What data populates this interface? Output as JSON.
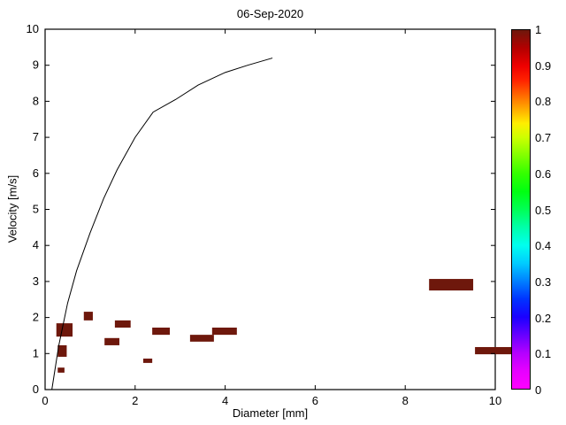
{
  "chart_data": {
    "type": "scatter",
    "title": "06-Sep-2020",
    "xlabel": "Diameter [mm]",
    "ylabel": "Velocity [m/s]",
    "xlim": [
      0,
      10
    ],
    "ylim": [
      0,
      10
    ],
    "xticks": [
      0,
      2,
      4,
      6,
      8,
      10
    ],
    "yticks": [
      0,
      1,
      2,
      3,
      4,
      5,
      6,
      7,
      8,
      9,
      10
    ],
    "grid": false,
    "curve": {
      "name": "terminal-velocity-curve",
      "color": "#000000",
      "points": [
        [
          0.15,
          0.0
        ],
        [
          0.3,
          1.2
        ],
        [
          0.5,
          2.4
        ],
        [
          0.7,
          3.3
        ],
        [
          1.0,
          4.35
        ],
        [
          1.3,
          5.3
        ],
        [
          1.6,
          6.1
        ],
        [
          2.0,
          7.0
        ],
        [
          2.4,
          7.7
        ],
        [
          2.9,
          8.05
        ],
        [
          3.4,
          8.45
        ],
        [
          4.0,
          8.8
        ],
        [
          4.5,
          9.0
        ],
        [
          5.05,
          9.2
        ]
      ]
    },
    "bins": {
      "name": "drop-count-bins",
      "value": 1,
      "color": "#6e180c",
      "rects": [
        {
          "x": 0.28,
          "y": 0.47,
          "w": 0.15,
          "h": 0.14
        },
        {
          "x": 0.28,
          "y": 0.91,
          "w": 0.2,
          "h": 0.32
        },
        {
          "x": 0.25,
          "y": 1.47,
          "w": 0.36,
          "h": 0.37
        },
        {
          "x": 0.86,
          "y": 1.92,
          "w": 0.2,
          "h": 0.24
        },
        {
          "x": 1.32,
          "y": 1.23,
          "w": 0.33,
          "h": 0.2
        },
        {
          "x": 1.55,
          "y": 1.72,
          "w": 0.35,
          "h": 0.2
        },
        {
          "x": 2.18,
          "y": 0.74,
          "w": 0.2,
          "h": 0.12
        },
        {
          "x": 2.38,
          "y": 1.52,
          "w": 0.39,
          "h": 0.2
        },
        {
          "x": 3.22,
          "y": 1.33,
          "w": 0.53,
          "h": 0.19
        },
        {
          "x": 3.71,
          "y": 1.52,
          "w": 0.55,
          "h": 0.2
        },
        {
          "x": 8.53,
          "y": 2.75,
          "w": 0.98,
          "h": 0.32
        },
        {
          "x": 9.55,
          "y": 0.98,
          "w": 1.0,
          "h": 0.2
        }
      ]
    },
    "colorbar": {
      "range": [
        0,
        1
      ],
      "ticks": [
        0,
        0.1,
        0.2,
        0.3,
        0.4,
        0.5,
        0.6,
        0.7,
        0.8,
        0.9,
        1
      ],
      "tick_labels": [
        "0",
        "0.1",
        "0.2",
        "0.3",
        "0.4",
        "0.5",
        "0.6",
        "0.7",
        "0.8",
        "0.9",
        "1"
      ],
      "gradient": [
        [
          0.0,
          "#ff00ff"
        ],
        [
          0.05,
          "#e600ff"
        ],
        [
          0.1,
          "#b300ff"
        ],
        [
          0.15,
          "#6600ff"
        ],
        [
          0.2,
          "#1a00ff"
        ],
        [
          0.25,
          "#0033ff"
        ],
        [
          0.3,
          "#0080ff"
        ],
        [
          0.35,
          "#00ccff"
        ],
        [
          0.4,
          "#00ffee"
        ],
        [
          0.45,
          "#00ffaa"
        ],
        [
          0.5,
          "#00ff55"
        ],
        [
          0.55,
          "#00ff11"
        ],
        [
          0.6,
          "#33ff00"
        ],
        [
          0.65,
          "#80ff00"
        ],
        [
          0.7,
          "#ccff00"
        ],
        [
          0.74,
          "#ffee00"
        ],
        [
          0.78,
          "#ffaa00"
        ],
        [
          0.82,
          "#ff6600"
        ],
        [
          0.86,
          "#ff2200"
        ],
        [
          0.9,
          "#ee0000"
        ],
        [
          0.95,
          "#b30000"
        ],
        [
          1.0,
          "#6e180c"
        ]
      ]
    }
  }
}
